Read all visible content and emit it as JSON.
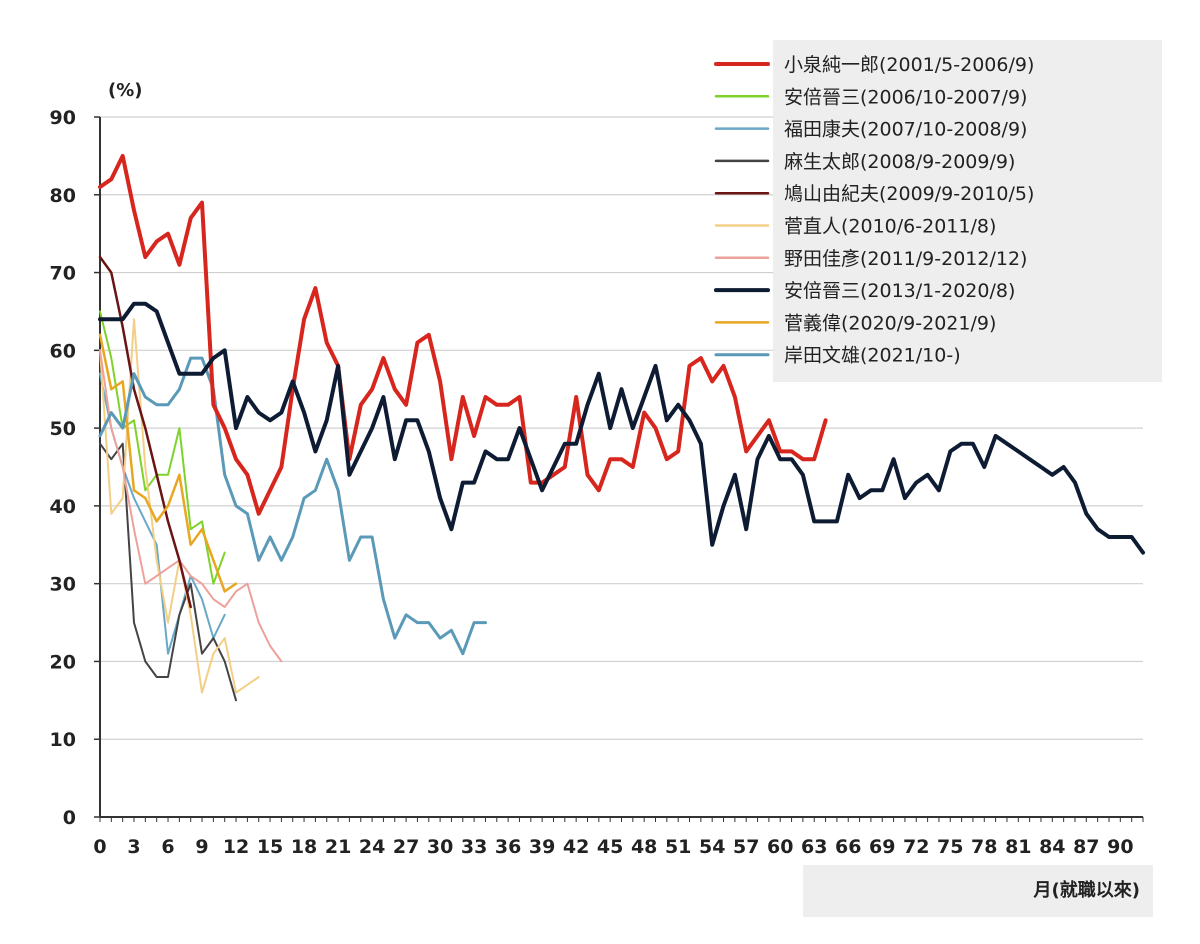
{
  "chart_data": {
    "type": "line",
    "title": "",
    "ylabel": "(%)",
    "xlabel": "月(就職以來)",
    "ylim": [
      0,
      90
    ],
    "xlim": [
      0,
      92
    ],
    "y_ticks": [
      0,
      10,
      20,
      30,
      40,
      50,
      60,
      70,
      80,
      90
    ],
    "x_ticks": [
      0,
      3,
      6,
      9,
      12,
      15,
      18,
      21,
      24,
      27,
      30,
      33,
      36,
      39,
      42,
      45,
      48,
      51,
      54,
      57,
      60,
      63,
      66,
      69,
      72,
      75,
      78,
      81,
      84,
      87,
      90
    ],
    "grid": "horizontal",
    "legend_position": "top-right",
    "series": [
      {
        "name": "小泉純一郎(2001/5-2006/9)",
        "color": "#d7261e",
        "width": 4,
        "values": [
          81,
          82,
          85,
          78,
          72,
          74,
          75,
          71,
          77,
          79,
          53,
          50,
          46,
          44,
          39,
          42,
          45,
          55,
          64,
          68,
          61,
          58,
          46,
          53,
          55,
          59,
          55,
          53,
          61,
          62,
          56,
          46,
          54,
          49,
          54,
          53,
          53,
          54,
          43,
          43,
          44,
          45,
          54,
          44,
          42,
          46,
          46,
          45,
          52,
          50,
          46,
          47,
          58,
          59,
          56,
          58,
          54,
          47,
          49,
          51,
          47,
          47,
          46,
          46,
          51
        ]
      },
      {
        "name": "安倍晉三(2006/10-2007/9)",
        "color": "#7ed32a",
        "width": 2,
        "values": [
          65,
          59,
          50,
          51,
          42,
          44,
          44,
          50,
          37,
          38,
          30,
          34
        ]
      },
      {
        "name": "福田康夫(2007/10-2008/9)",
        "color": "#6aa8c8",
        "width": 2,
        "values": [
          57,
          50,
          45,
          41,
          38,
          35,
          21,
          26,
          31,
          28,
          23,
          26
        ]
      },
      {
        "name": "麻生太郎(2008/9-2009/9)",
        "color": "#444444",
        "width": 2,
        "values": [
          48,
          46,
          48,
          25,
          20,
          18,
          18,
          26,
          30,
          21,
          23,
          20,
          15
        ]
      },
      {
        "name": "鳩山由紀夫(2009/9-2010/5)",
        "color": "#6a1414",
        "width": 2.5,
        "values": [
          72,
          70,
          63,
          55,
          50,
          44,
          38,
          33,
          27
        ]
      },
      {
        "name": "菅直人(2010/6-2011/8)",
        "color": "#f3cf86",
        "width": 2,
        "values": [
          60,
          39,
          41,
          64,
          45,
          33,
          25,
          33,
          26,
          16,
          21,
          23,
          16,
          17,
          18
        ]
      },
      {
        "name": "野田佳彥(2011/9-2012/12)",
        "color": "#eea19a",
        "width": 2,
        "values": [
          60,
          50,
          45,
          37,
          30,
          31,
          32,
          33,
          31,
          30,
          28,
          27,
          29,
          30,
          25,
          22,
          20
        ]
      },
      {
        "name": "安倍晉三(2013/1-2020/8)",
        "color": "#0d1b33",
        "width": 4,
        "values": [
          64,
          64,
          64,
          66,
          66,
          65,
          61,
          57,
          57,
          57,
          59,
          60,
          50,
          54,
          52,
          51,
          52,
          56,
          52,
          47,
          51,
          58,
          44,
          47,
          50,
          54,
          46,
          51,
          51,
          47,
          41,
          37,
          43,
          43,
          47,
          46,
          46,
          50,
          46,
          42,
          45,
          48,
          48,
          53,
          57,
          50,
          55,
          50,
          54,
          58,
          51,
          53,
          51,
          48,
          35,
          40,
          44,
          37,
          46,
          49,
          46,
          46,
          44,
          38,
          38,
          38,
          44,
          41,
          42,
          42,
          46,
          41,
          43,
          44,
          42,
          47,
          48,
          48,
          45,
          49,
          48,
          47,
          46,
          45,
          44,
          45,
          43,
          39,
          37,
          36,
          36,
          36,
          34
        ]
      },
      {
        "name": "菅義偉(2020/9-2021/9)",
        "color": "#e8a722",
        "width": 2.5,
        "values": [
          62,
          55,
          56,
          42,
          41,
          38,
          40,
          44,
          35,
          37,
          33,
          29,
          30
        ]
      },
      {
        "name": "岸田文雄(2021/10-)",
        "color": "#5a9ab8",
        "width": 3,
        "values": [
          49,
          52,
          50,
          57,
          54,
          53,
          53,
          55,
          59,
          59,
          55,
          44,
          40,
          39,
          33,
          36,
          33,
          36,
          41,
          42,
          46,
          42,
          33,
          36,
          36,
          28,
          23,
          26,
          25,
          25,
          23,
          24,
          21,
          25,
          25
        ]
      }
    ]
  }
}
